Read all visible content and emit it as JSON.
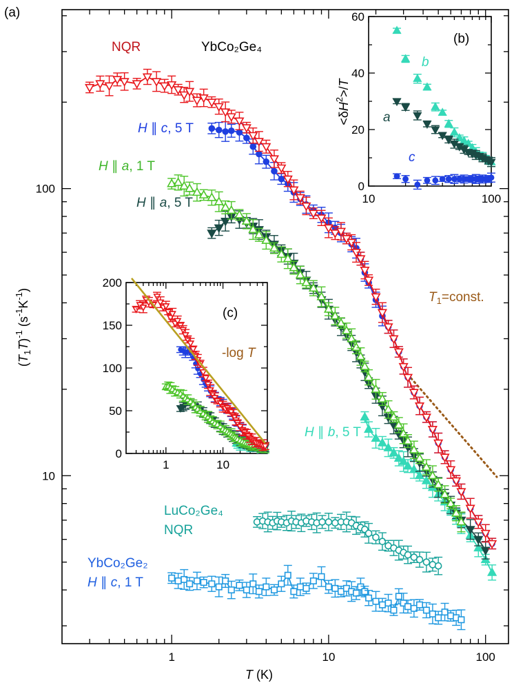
{
  "chart_data": [
    {
      "id": "main",
      "type": "scatter",
      "panel_label": "(a)",
      "title": "",
      "xlabel": {
        "italic": "T",
        "rest": " (K)"
      },
      "ylabel": "(T₁T)⁻¹ (s⁻¹K⁻¹)",
      "xscale": "log",
      "yscale": "log",
      "xlim": [
        0.2,
        140
      ],
      "ylim": [
        2.6,
        420
      ],
      "xticks": [
        1,
        10,
        100
      ],
      "xtick_labels": [
        "1",
        "10",
        "100"
      ],
      "yticks": [
        10,
        100
      ],
      "ytick_labels": [
        "10",
        "100"
      ],
      "compound_label": "YbCo₂Ge₄",
      "series": [
        {
          "name": "NQR",
          "color": "#e8161b",
          "marker": "tri-down-open",
          "lines": true,
          "x": [
            0.3,
            0.35,
            0.4,
            0.45,
            0.5,
            0.6,
            0.7,
            0.8,
            0.9,
            1.0,
            1.1,
            1.2,
            1.3,
            1.45,
            1.6,
            1.8,
            2.0,
            2.2,
            2.4,
            2.7,
            3.0,
            3.3,
            3.6,
            4.0,
            4.5,
            5.0,
            5.5,
            6.0,
            6.6,
            7.2,
            8.0,
            9.0,
            10,
            11,
            12,
            13,
            14,
            15,
            16,
            17,
            18,
            20,
            22,
            24,
            26,
            28,
            30,
            32,
            35,
            38,
            42,
            46,
            50,
            55,
            60,
            65,
            70,
            80,
            90,
            100,
            110
          ],
          "y": [
            225,
            232,
            228,
            240,
            236,
            232,
            245,
            236,
            228,
            230,
            221,
            212,
            218,
            203,
            207,
            200,
            193,
            185,
            178,
            172,
            163,
            153,
            146,
            140,
            127,
            118,
            108,
            99,
            93,
            87,
            82,
            79,
            73,
            70,
            71,
            67,
            65,
            60,
            57,
            52,
            48,
            42,
            37,
            33,
            30,
            27,
            24,
            22,
            19.5,
            17.5,
            16,
            14.5,
            13,
            11.6,
            10.5,
            9.6,
            8.8,
            7.7,
            6.9,
            6.3,
            5.8
          ]
        },
        {
          "name": "H ∥ c, 5 T",
          "color": "#1f3fe0",
          "marker": "circle-filled",
          "lines": true,
          "x": [
            1.8,
            2.0,
            2.2,
            2.4,
            2.7,
            3.0,
            3.3,
            3.6,
            4.0,
            4.5,
            5.0,
            5.5,
            6.0,
            6.6,
            7.2,
            8.0,
            9.0,
            10,
            11,
            12,
            13,
            14,
            15,
            16,
            17,
            18,
            20,
            22,
            24,
            26,
            28,
            30,
            32,
            35,
            38,
            42,
            46,
            50,
            55,
            60,
            65,
            70,
            80,
            90,
            100,
            110
          ],
          "y": [
            162,
            160,
            158,
            159,
            157,
            150,
            140,
            132,
            124,
            115,
            108,
            104,
            97,
            92,
            88,
            84,
            81,
            76,
            73,
            70,
            67,
            64,
            62,
            57,
            51,
            47,
            41,
            36,
            33,
            30,
            27,
            24,
            22,
            19.5,
            17.5,
            16,
            14.5,
            13,
            11.6,
            10.5,
            9.6,
            8.8,
            7.7,
            6.9,
            6.3,
            5.8
          ]
        },
        {
          "name": "H ∥ a, 1 T",
          "color": "#4ec52a",
          "marker": "tri-up-open",
          "lines": true,
          "x": [
            1.0,
            1.1,
            1.2,
            1.3,
            1.45,
            1.6,
            1.8,
            2.0,
            2.2,
            2.4,
            2.7,
            3.0,
            3.3,
            3.6,
            4.0,
            4.5,
            5.0,
            5.5,
            6.0,
            6.6,
            7.2,
            8.0,
            9.0,
            10,
            11,
            12,
            13,
            14,
            15,
            16,
            17,
            18,
            20,
            22,
            24,
            26,
            28,
            30,
            32,
            35,
            38,
            42,
            46,
            50,
            55,
            60,
            65,
            70
          ],
          "y": [
            104,
            105,
            102,
            100,
            97,
            95,
            93,
            90,
            86,
            84,
            81,
            77,
            72,
            69,
            66,
            62,
            59,
            57,
            53,
            50,
            47,
            45,
            42,
            38,
            36,
            34,
            32,
            30,
            28,
            26,
            24,
            22,
            20,
            18.5,
            17,
            16,
            15,
            14,
            13.2,
            12.3,
            11.5,
            10.7,
            10,
            9.3,
            8.6,
            8,
            7.4,
            6.9
          ]
        },
        {
          "name": "H ∥ a, 5 T",
          "color": "#1a4a45",
          "marker": "tri-down-filled",
          "lines": true,
          "x": [
            1.8,
            2.0,
            2.2,
            2.4,
            2.7,
            3.0,
            3.3,
            3.6,
            4.0,
            4.5,
            5.0,
            5.5,
            6.0,
            6.6,
            7.2,
            8.0,
            9.0,
            10,
            11,
            12,
            13,
            14,
            15,
            16,
            17,
            18,
            20,
            22,
            24,
            26,
            28,
            30,
            32,
            35,
            38,
            42,
            46,
            50,
            55,
            60,
            65,
            70,
            80,
            90,
            100
          ],
          "y": [
            70,
            73,
            77,
            80,
            78,
            76,
            74,
            72,
            68,
            64,
            61,
            58,
            55,
            51,
            48,
            45,
            41,
            38,
            35,
            33,
            31,
            29,
            27,
            25,
            23,
            21,
            19,
            17.5,
            16,
            15,
            14,
            13.3,
            12.6,
            11.8,
            11.1,
            10.4,
            9.7,
            9.1,
            8.5,
            7.9,
            7.4,
            7.0,
            6.5,
            6.0,
            5.5
          ]
        },
        {
          "name": "H ∥ b, 5 T",
          "color": "#35d9b8",
          "marker": "tri-up-filled",
          "lines": true,
          "x": [
            17,
            18,
            20,
            22,
            24,
            26,
            28,
            30,
            32,
            35,
            38,
            42,
            46,
            50,
            55,
            60,
            65,
            70,
            80,
            90,
            100,
            110
          ],
          "y": [
            16,
            14.5,
            13.5,
            13,
            12.5,
            12,
            11.5,
            11.2,
            10.8,
            10.5,
            10,
            9.6,
            9.1,
            8.6,
            8.1,
            7.6,
            7.2,
            6.8,
            6.2,
            5.6,
            5.1,
            4.6
          ]
        },
        {
          "name": "LuCo₂Ge₄ NQR",
          "color": "#17a29a",
          "marker": "circle-open",
          "lines": true,
          "x": [
            3.5,
            3.8,
            4.1,
            4.4,
            4.7,
            5.0,
            5.4,
            5.8,
            6.2,
            6.7,
            7.2,
            7.8,
            8.4,
            9.1,
            10,
            11,
            12,
            13,
            14,
            15,
            16,
            17,
            18,
            20,
            22,
            24,
            26,
            28,
            30,
            32,
            35,
            38,
            42,
            46,
            50
          ],
          "y": [
            6.9,
            6.95,
            6.9,
            6.85,
            6.95,
            6.9,
            6.85,
            6.95,
            6.9,
            6.85,
            6.95,
            6.9,
            6.85,
            6.9,
            6.9,
            6.85,
            6.9,
            6.9,
            6.85,
            6.7,
            6.6,
            6.5,
            6.3,
            6.1,
            5.9,
            5.7,
            5.6,
            5.5,
            5.4,
            5.3,
            5.2,
            5.1,
            5.0,
            4.9,
            4.85
          ]
        },
        {
          "name": "YbCo₂Ge₂ H ∥ c, 1 T",
          "color": "#1f98e0",
          "marker": "square-open",
          "lines": true,
          "x": [
            1.0,
            1.1,
            1.2,
            1.3,
            1.45,
            1.6,
            1.8,
            2.0,
            2.2,
            2.4,
            2.7,
            3.0,
            3.3,
            3.6,
            4.0,
            4.5,
            5.0,
            5.5,
            6.0,
            6.6,
            7.2,
            8.0,
            9.0,
            10,
            11,
            12,
            13,
            14,
            15,
            16,
            17,
            18,
            20,
            22,
            24,
            26,
            28,
            30,
            32,
            35,
            38,
            42,
            46,
            50,
            55,
            60,
            65,
            70
          ],
          "y": [
            4.4,
            4.3,
            4.35,
            4.2,
            4.3,
            4.25,
            4.2,
            4.1,
            4.3,
            4.0,
            4.15,
            4.0,
            4.2,
            3.95,
            4.1,
            4.0,
            4.2,
            4.5,
            3.95,
            4.1,
            4.05,
            4.3,
            4.45,
            4.1,
            4.05,
            3.95,
            4.05,
            3.95,
            3.9,
            4.1,
            3.95,
            3.75,
            3.65,
            3.55,
            3.6,
            3.4,
            3.8,
            3.6,
            3.5,
            3.45,
            3.55,
            3.4,
            3.3,
            3.2,
            3.35,
            3.25,
            3.2,
            3.15
          ]
        }
      ],
      "annotations": [
        {
          "name": "T₁=const.",
          "color": "#9a5a18",
          "x1": 32,
          "y1": 22.5,
          "x2": 118,
          "y2": 9.9
        }
      ],
      "legend_placement": "in-plot labels"
    },
    {
      "id": "inset_b",
      "type": "scatter",
      "panel_label": "(b)",
      "ylabel": "<δH²>/T",
      "xscale": "log",
      "yscale": "linear",
      "xlim": [
        10,
        100
      ],
      "ylim": [
        0,
        60
      ],
      "xticks": [
        10,
        100
      ],
      "xtick_labels": [
        "10",
        "100"
      ],
      "yticks": [
        0,
        20,
        40,
        60
      ],
      "ytick_labels": [
        "0",
        "20",
        "40",
        "60"
      ],
      "series": [
        {
          "name": "b",
          "color": "#35d9b8",
          "marker": "tri-up-filled",
          "lines": false,
          "x": [
            17,
            20,
            25,
            30,
            35,
            40,
            45,
            50,
            55,
            60,
            65,
            70,
            75,
            80,
            85,
            90,
            95,
            100
          ],
          "y": [
            55,
            45,
            38,
            35,
            28,
            26,
            22,
            19,
            17,
            16,
            15,
            13.5,
            12,
            11,
            10.5,
            10,
            9,
            8.5
          ]
        },
        {
          "name": "a",
          "color": "#1a4a45",
          "marker": "tri-down-filled",
          "lines": false,
          "x": [
            17,
            20,
            25,
            30,
            35,
            40,
            45,
            50,
            55,
            60,
            65,
            70,
            75,
            80,
            85,
            90,
            95,
            100
          ],
          "y": [
            30,
            28,
            25,
            22,
            20,
            18,
            16.5,
            15,
            14,
            13,
            12,
            11.5,
            11,
            10.5,
            10,
            9.5,
            9,
            8.5
          ]
        },
        {
          "name": "c",
          "color": "#1f3fe0",
          "marker": "circle-filled",
          "lines": false,
          "x": [
            17,
            20,
            25,
            30,
            35,
            40,
            45,
            50,
            55,
            60,
            65,
            70,
            75,
            80,
            85,
            90,
            95,
            100
          ],
          "y": [
            3.5,
            2.5,
            0.5,
            2,
            2,
            2.5,
            2.5,
            2.5,
            2.5,
            2.5,
            2.5,
            2.5,
            2.5,
            2.5,
            2.5,
            2.5,
            2.5,
            3
          ]
        }
      ]
    },
    {
      "id": "inset_c",
      "type": "scatter",
      "panel_label": "(c)",
      "xscale": "log",
      "yscale": "linear",
      "xlim": [
        0.2,
        60
      ],
      "ylim": [
        0,
        200
      ],
      "xticks": [
        1,
        10
      ],
      "xtick_labels": [
        "1",
        "10"
      ],
      "yticks": [
        0,
        50,
        100,
        150,
        200
      ],
      "ytick_labels": [
        "0",
        "50",
        "100",
        "150",
        "200"
      ],
      "fit_label": {
        "prefix": "-log ",
        "italic": "T"
      },
      "fit_color": "#b9a020",
      "fit": {
        "x1": 0.25,
        "y1": 205,
        "x2": 55,
        "y2": 12
      },
      "series_ref": [
        "NQR",
        "H ∥ c, 5 T",
        "H ∥ a, 1 T",
        "H ∥ a, 5 T",
        "H ∥ b, 5 T"
      ],
      "extra_series": [
        {
          "name": "H ∥ b, 5 T",
          "color": "#35d9b8",
          "marker": "tri-up-filled",
          "x": [
            17,
            20,
            24,
            28,
            32,
            36,
            40,
            45,
            50,
            55
          ],
          "y": [
            16,
            14.5,
            13.5,
            13,
            12.5,
            12,
            11.5,
            11.2,
            10.8,
            10.5
          ]
        }
      ]
    }
  ],
  "labels": {
    "nqr": "NQR",
    "compound": "YbCo₂Ge₄",
    "hc5": {
      "H": "H",
      "rest": " ∥ ",
      "dir": "c",
      "tail": ", 5 T"
    },
    "ha1": {
      "H": "H",
      "rest": " ∥ ",
      "dir": "a",
      "tail": ", 1 T"
    },
    "ha5": {
      "H": "H",
      "rest": " ∥ ",
      "dir": "a",
      "tail": ", 5 T"
    },
    "hb5": {
      "H": "H",
      "rest": " ∥ ",
      "dir": "b",
      "tail": ", 5 T"
    },
    "lu1": "LuCo₂Ge₄",
    "lu2": "NQR",
    "yb2a": "YbCo₂Ge₂",
    "yb2b": {
      "H": "H",
      "rest": " ∥ ",
      "dir": "c",
      "tail": ", 1 T"
    },
    "t1const": {
      "T": "T",
      "sub": "1",
      "rest": "=const."
    },
    "inset_b_series": {
      "b": "b",
      "a": "a",
      "c": "c"
    }
  },
  "colors": {
    "nqr": "#e8161b",
    "hc5": "#1f3fe0",
    "ha1": "#4ec52a",
    "ha5": "#1a4a45",
    "hb5": "#35d9b8",
    "lu": "#17a29a",
    "yb2": "#1f98e0",
    "dotted": "#9a5a18",
    "fit": "#b9a020"
  }
}
